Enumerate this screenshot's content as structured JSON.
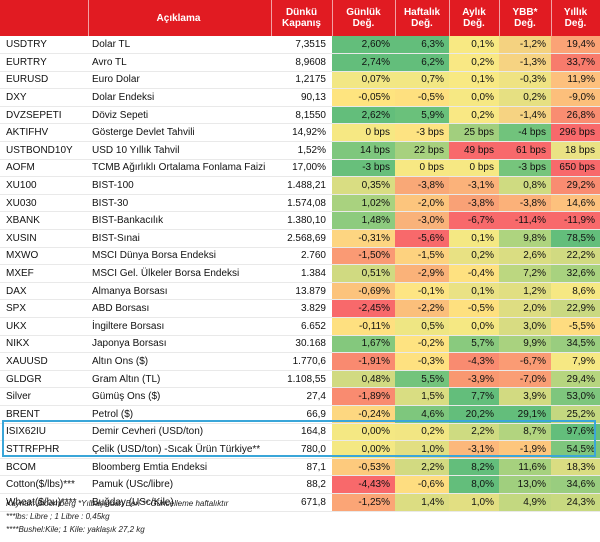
{
  "headers": {
    "code": "",
    "label": "Açıklama",
    "close": "Dünkü Kapanış",
    "daily": "Günlük Değ.",
    "weekly": "Haftalık Değ.",
    "monthly": "Aylık Değ.",
    "ytd": "YBB* Değ.",
    "yearly": "Yıllık Değ."
  },
  "rows": [
    {
      "code": "USDTRY",
      "desc": "Dolar TL",
      "close": "7,3515",
      "vals": [
        "2,60%",
        "6,3%",
        "0,1%",
        "-1,2%",
        "19,4%"
      ],
      "colors": [
        "#63be7b",
        "#63be7b",
        "#f8e983",
        "#f4d280",
        "#fba376"
      ]
    },
    {
      "code": "EURTRY",
      "desc": "Avro TL",
      "close": "8,9608",
      "vals": [
        "2,74%",
        "6,2%",
        "0,2%",
        "-1,3%",
        "33,7%"
      ],
      "colors": [
        "#63be7b",
        "#63be7b",
        "#f9e884",
        "#f6d382",
        "#f87b6c"
      ]
    },
    {
      "code": "EURUSD",
      "desc": "Euro Dolar",
      "close": "1,2175",
      "vals": [
        "0,07%",
        "0,7%",
        "0,1%",
        "-0,3%",
        "11,9%"
      ],
      "colors": [
        "#f2e784",
        "#f2e783",
        "#f8e983",
        "#efe383",
        "#fdc07d"
      ]
    },
    {
      "code": "DXY",
      "desc": "Dolar Endeksi",
      "close": "90,13",
      "vals": [
        "-0,05%",
        "-0,5%",
        "0,0%",
        "0,2%",
        "-9,0%"
      ],
      "colors": [
        "#fee47f",
        "#fee07f",
        "#f6e883",
        "#e6e082",
        "#fcbf7b"
      ]
    },
    {
      "code": "DVZSEPETI",
      "desc": "Döviz Sepeti",
      "close": "8,1550",
      "vals": [
        "2,62%",
        "5,9%",
        "0,2%",
        "-1,4%",
        "26,8%"
      ],
      "colors": [
        "#63be7b",
        "#6ac17b",
        "#f9e884",
        "#f6d382",
        "#f98d71"
      ]
    },
    {
      "code": "AKTIFHV",
      "desc": "Gösterge Devlet Tahvili",
      "close": "14,92%",
      "vals": [
        "0 bps",
        "-3 bps",
        "25 bps",
        "-4 bps",
        "296 bps"
      ],
      "colors": [
        "#f6e883",
        "#fde382",
        "#a2cf7e",
        "#71c37c",
        "#f8696b"
      ]
    },
    {
      "code": "USTBOND10Y",
      "desc": "USD 10 Yıllık Tahvil",
      "close": "1,52%",
      "vals": [
        "14 bps",
        "22 bps",
        "49 bps",
        "61 bps",
        "18 bps"
      ],
      "colors": [
        "#7ec77d",
        "#a7d17e",
        "#f8696b",
        "#f8696b",
        "#eae284"
      ]
    },
    {
      "code": "AOFM",
      "desc": "TCMB Ağırlıklı Ortalama Fonlama Faizi",
      "close": "17,00%",
      "vals": [
        "-3 bps",
        "0 bps",
        "0 bps",
        "-3 bps",
        "650 bps"
      ],
      "colors": [
        "#68bf7b",
        "#f7e883",
        "#f6e883",
        "#76c57c",
        "#f8696b"
      ]
    },
    {
      "code": "XU100",
      "desc": "BIST-100",
      "close": "1.488,21",
      "vals": [
        "0,35%",
        "-3,8%",
        "-3,1%",
        "0,8%",
        "29,2%"
      ],
      "colors": [
        "#d9dd82",
        "#f9a877",
        "#fbb27a",
        "#cfdb81",
        "#f98c71"
      ]
    },
    {
      "code": "XU030",
      "desc": "BIST-30",
      "close": "1.574,08",
      "vals": [
        "1,02%",
        "-2,0%",
        "-3,8%",
        "-3,8%",
        "14,6%"
      ],
      "colors": [
        "#a9d27f",
        "#fcc57d",
        "#f9a176",
        "#fbb179",
        "#fdc17d"
      ]
    },
    {
      "code": "XBANK",
      "desc": "BIST-Bankacılık",
      "close": "1.380,10",
      "vals": [
        "1,48%",
        "-3,0%",
        "-6,7%",
        "-11,4%",
        "-11,9%"
      ],
      "colors": [
        "#8dcb7e",
        "#f9b27a",
        "#f8696b",
        "#f8696b",
        "#f8696b"
      ]
    },
    {
      "code": "XUSIN",
      "desc": "BIST-Sınai",
      "close": "2.568,69",
      "vals": [
        "-0,31%",
        "-5,6%",
        "0,1%",
        "9,8%",
        "78,5%"
      ],
      "colors": [
        "#fdd581",
        "#f8696b",
        "#f4e883",
        "#aed47f",
        "#63be7b"
      ]
    },
    {
      "code": "MXWO",
      "desc": "MSCI Dünya Borsa Endeksi",
      "close": "2.760",
      "vals": [
        "-1,50%",
        "-1,5%",
        "0,2%",
        "2,6%",
        "22,2%"
      ],
      "colors": [
        "#fa9a74",
        "#fdd27f",
        "#e8e183",
        "#dadd82",
        "#d1da81"
      ]
    },
    {
      "code": "MXEF",
      "desc": "MSCI Gel. Ülkeler Borsa Endeksi",
      "close": "1.384",
      "vals": [
        "0,51%",
        "-2,9%",
        "-0,4%",
        "7,2%",
        "32,6%"
      ],
      "colors": [
        "#d0da81",
        "#fab279",
        "#fee180",
        "#bcd780",
        "#a8d27f"
      ]
    },
    {
      "code": "DAX",
      "desc": "Almanya Borsası",
      "close": "13.879",
      "vals": [
        "-0,69%",
        "-0,1%",
        "0,1%",
        "1,2%",
        "8,6%"
      ],
      "colors": [
        "#fcc37c",
        "#fde583",
        "#eae284",
        "#e1df82",
        "#f6e883"
      ]
    },
    {
      "code": "SPX",
      "desc": "ABD Borsası",
      "close": "3.829",
      "vals": [
        "-2,45%",
        "-2,2%",
        "-0,5%",
        "2,0%",
        "22,9%"
      ],
      "colors": [
        "#f8696b",
        "#fbbf7b",
        "#fee07f",
        "#dedd82",
        "#cad981"
      ]
    },
    {
      "code": "UKX",
      "desc": "İngiltere Borsası",
      "close": "6.652",
      "vals": [
        "-0,11%",
        "0,5%",
        "0,0%",
        "3,0%",
        "-5,5%"
      ],
      "colors": [
        "#fee080",
        "#eee683",
        "#f5e883",
        "#d8dc82",
        "#fedc80"
      ]
    },
    {
      "code": "NIKX",
      "desc": "Japonya Borsası",
      "close": "30.168",
      "vals": [
        "1,67%",
        "-0,2%",
        "5,7%",
        "9,9%",
        "34,5%"
      ],
      "colors": [
        "#84c87d",
        "#fee381",
        "#89ca7e",
        "#a9d27f",
        "#99cd7f"
      ]
    },
    {
      "code": "XAUUSD",
      "desc": "Altın Ons ($)",
      "close": "1.770,6",
      "vals": [
        "-1,91%",
        "-0,3%",
        "-4,3%",
        "-6,7%",
        "7,9%"
      ],
      "colors": [
        "#f98a70",
        "#fee180",
        "#f98b70",
        "#fa9b74",
        "#f6e883"
      ]
    },
    {
      "code": "GLDGR",
      "desc": "Gram Altın (TL)",
      "close": "1.108,55",
      "vals": [
        "0,48%",
        "5,5%",
        "-3,9%",
        "-7,0%",
        "29,4%"
      ],
      "colors": [
        "#d1da81",
        "#73c47c",
        "#f99871",
        "#fa9e75",
        "#b6d57f"
      ]
    },
    {
      "code": "Silver",
      "desc": "Gümüş Ons ($)",
      "close": "27,4",
      "vals": [
        "-1,89%",
        "1,5%",
        "7,7%",
        "3,9%",
        "53,0%"
      ],
      "colors": [
        "#f98b70",
        "#d9dd82",
        "#63be7b",
        "#d2da81",
        "#7ec67d"
      ]
    },
    {
      "code": "BRENT",
      "desc": "Petrol ($)",
      "close": "66,9",
      "vals": [
        "-0,24%",
        "4,6%",
        "20,2%",
        "29,1%",
        "25,2%"
      ],
      "colors": [
        "#fdd780",
        "#7ec77d",
        "#63be7b",
        "#63be7b",
        "#c4d880"
      ]
    },
    {
      "code": "ISIX62IU",
      "desc": "Demir Cevheri (USD/ton)",
      "close": "164,8",
      "vals": [
        "0,00%",
        "0,2%",
        "2,2%",
        "8,7%",
        "97,6%"
      ],
      "colors": [
        "#f4e883",
        "#f2e683",
        "#cedb81",
        "#b2d47f",
        "#63be7b"
      ]
    },
    {
      "code": "STTRFPHR",
      "desc": "Çelik (USD/ton) -Sıcak Ürün Türkiye**",
      "close": "780,0",
      "vals": [
        "0,00%",
        "1,0%",
        "-3,1%",
        "-1,9%",
        "54,5%"
      ],
      "colors": [
        "#f4e883",
        "#e2df82",
        "#fcb87b",
        "#fdc67d",
        "#7ec67d"
      ]
    },
    {
      "code": "BCOM",
      "desc": "Bloomberg Emtia Endeksi",
      "close": "87,1",
      "vals": [
        "-0,53%",
        "2,2%",
        "8,2%",
        "11,6%",
        "18,3%"
      ],
      "colors": [
        "#fdca7d",
        "#d2da81",
        "#63be7b",
        "#a6d17e",
        "#dadd82"
      ]
    },
    {
      "code": "Cotton($/lbs)***",
      "desc": "Pamuk (USc/libre)",
      "close": "88,2",
      "vals": [
        "-4,43%",
        "-0,6%",
        "8,0%",
        "13,0%",
        "34,6%"
      ],
      "colors": [
        "#f8696b",
        "#fedd80",
        "#63be7b",
        "#a0cf7e",
        "#99cd7f"
      ]
    },
    {
      "code": "Wheat($/bu)****",
      "desc": "Buğday (USc/Kile)",
      "close": "671,8",
      "vals": [
        "-1,25%",
        "1,4%",
        "1,0%",
        "4,9%",
        "24,3%"
      ],
      "colors": [
        "#fba576",
        "#dcdd82",
        "#e2df82",
        "#c3d880",
        "#c8d980"
      ]
    }
  ],
  "notes": {
    "line1": "Kaynak: Bloomberg *Yılbaşından Beri  ** Güncelleme haftalıktır",
    "line2": "***lbs: Libre ; 1 Libre : 0,45kg",
    "line3": "****Bushel:Kile; 1 Kile: yaklaşık 27,2 kg"
  }
}
